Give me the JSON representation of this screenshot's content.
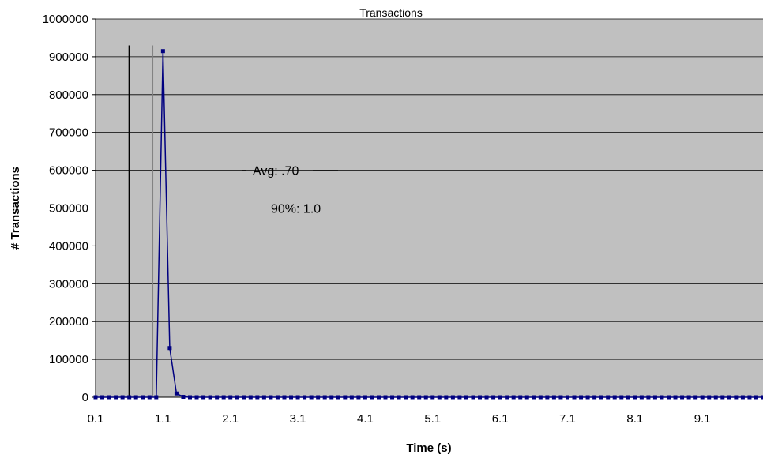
{
  "chart_data": {
    "type": "line",
    "title": "Transactions",
    "xlabel": "Time (s)",
    "ylabel": "# Transactions",
    "xlim": [
      0.1,
      10.0
    ],
    "ylim": [
      0,
      1000000
    ],
    "x_tick_labels": [
      "0.1",
      "1.1",
      "2.1",
      "3.1",
      "4.1",
      "5.1",
      "6.1",
      "7.1",
      "8.1",
      "9.1"
    ],
    "y_tick_labels": [
      "0",
      "100000",
      "200000",
      "300000",
      "400000",
      "500000",
      "600000",
      "700000",
      "800000",
      "900000",
      "1000000"
    ],
    "grid": true,
    "plot_background": "#c0c0c0",
    "series": [
      {
        "color": "#000080",
        "points": [
          [
            0.1,
            0
          ],
          [
            0.2,
            0
          ],
          [
            0.3,
            0
          ],
          [
            0.4,
            0
          ],
          [
            0.5,
            0
          ],
          [
            0.6,
            0
          ],
          [
            0.7,
            0
          ],
          [
            0.8,
            0
          ],
          [
            0.9,
            0
          ],
          [
            1.0,
            0
          ],
          [
            1.1,
            915000
          ],
          [
            1.2,
            130000
          ],
          [
            1.3,
            10000
          ],
          [
            1.4,
            1000
          ],
          [
            1.5,
            0
          ],
          [
            1.6,
            0
          ],
          [
            1.7,
            0
          ],
          [
            1.8,
            0
          ],
          [
            1.9,
            0
          ],
          [
            2.0,
            0
          ],
          [
            2.1,
            0
          ],
          [
            2.2,
            0
          ],
          [
            2.3,
            0
          ],
          [
            2.4,
            0
          ],
          [
            2.5,
            0
          ],
          [
            2.6,
            0
          ],
          [
            2.7,
            0
          ],
          [
            2.8,
            0
          ],
          [
            2.9,
            0
          ],
          [
            3.0,
            0
          ],
          [
            3.1,
            0
          ],
          [
            3.2,
            0
          ],
          [
            3.3,
            0
          ],
          [
            3.4,
            0
          ],
          [
            3.5,
            0
          ],
          [
            3.6,
            0
          ],
          [
            3.7,
            0
          ],
          [
            3.8,
            0
          ],
          [
            3.9,
            0
          ],
          [
            4.0,
            0
          ],
          [
            4.1,
            0
          ],
          [
            4.2,
            0
          ],
          [
            4.3,
            0
          ],
          [
            4.4,
            0
          ],
          [
            4.5,
            0
          ],
          [
            4.6,
            0
          ],
          [
            4.7,
            0
          ],
          [
            4.8,
            0
          ],
          [
            4.9,
            0
          ],
          [
            5.0,
            0
          ],
          [
            5.1,
            0
          ],
          [
            5.2,
            0
          ],
          [
            5.3,
            0
          ],
          [
            5.4,
            0
          ],
          [
            5.5,
            0
          ],
          [
            5.6,
            0
          ],
          [
            5.7,
            0
          ],
          [
            5.8,
            0
          ],
          [
            5.9,
            0
          ],
          [
            6.0,
            0
          ],
          [
            6.1,
            0
          ],
          [
            6.2,
            0
          ],
          [
            6.3,
            0
          ],
          [
            6.4,
            0
          ],
          [
            6.5,
            0
          ],
          [
            6.6,
            0
          ],
          [
            6.7,
            0
          ],
          [
            6.8,
            0
          ],
          [
            6.9,
            0
          ],
          [
            7.0,
            0
          ],
          [
            7.1,
            0
          ],
          [
            7.2,
            0
          ],
          [
            7.3,
            0
          ],
          [
            7.4,
            0
          ],
          [
            7.5,
            0
          ],
          [
            7.6,
            0
          ],
          [
            7.7,
            0
          ],
          [
            7.8,
            0
          ],
          [
            7.9,
            0
          ],
          [
            8.0,
            0
          ],
          [
            8.1,
            0
          ],
          [
            8.2,
            0
          ],
          [
            8.3,
            0
          ],
          [
            8.4,
            0
          ],
          [
            8.5,
            0
          ],
          [
            8.6,
            0
          ],
          [
            8.7,
            0
          ],
          [
            8.8,
            0
          ],
          [
            8.9,
            0
          ],
          [
            9.0,
            0
          ],
          [
            9.1,
            0
          ],
          [
            9.2,
            0
          ],
          [
            9.3,
            0
          ],
          [
            9.4,
            0
          ],
          [
            9.5,
            0
          ],
          [
            9.6,
            0
          ],
          [
            9.7,
            0
          ],
          [
            9.8,
            0
          ],
          [
            9.9,
            0
          ],
          [
            10.0,
            0
          ]
        ]
      }
    ],
    "reference_lines": [
      {
        "label": "Avg: .70",
        "x": 0.6,
        "y_top": 930000,
        "label_y": 600000,
        "color": "#000000"
      },
      {
        "label": "90%: 1.0",
        "x": 0.95,
        "y_top": 930000,
        "label_y": 500000,
        "color": "#808080"
      }
    ]
  }
}
